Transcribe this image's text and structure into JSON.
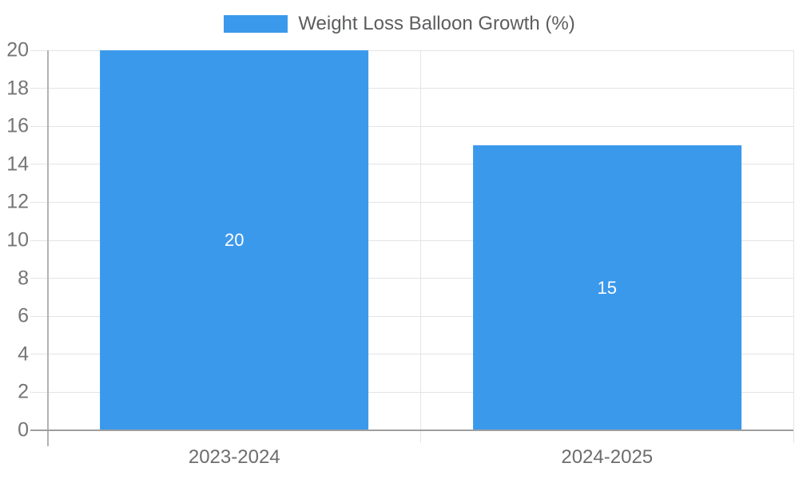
{
  "chart_data": {
    "type": "bar",
    "title": "Weight Loss Balloon Growth (%)",
    "legend": {
      "label": "Weight Loss Balloon Growth (%)",
      "position": "top"
    },
    "categories": [
      "2023-2024",
      "2024-2025"
    ],
    "series": [
      {
        "name": "Weight Loss Balloon Growth (%)",
        "values": [
          20,
          15
        ]
      }
    ],
    "bar_value_labels": [
      "20",
      "15"
    ],
    "xlabel": "",
    "ylabel": "",
    "ylim": [
      0,
      20
    ],
    "yticks": [
      0,
      2,
      4,
      6,
      8,
      10,
      12,
      14,
      16,
      18,
      20
    ],
    "grid": true,
    "legend_position": "top",
    "colors": {
      "bar": "#3b99ec",
      "grid": "#e4e4e4",
      "axis": "#b3b3b3",
      "baseline": "#9e9e9e",
      "tick_text": "#757575",
      "category_text": "#6d6d6d",
      "legend_text": "#5c5d5f",
      "bar_label_text": "#ffffff",
      "background": "#ffffff"
    }
  }
}
